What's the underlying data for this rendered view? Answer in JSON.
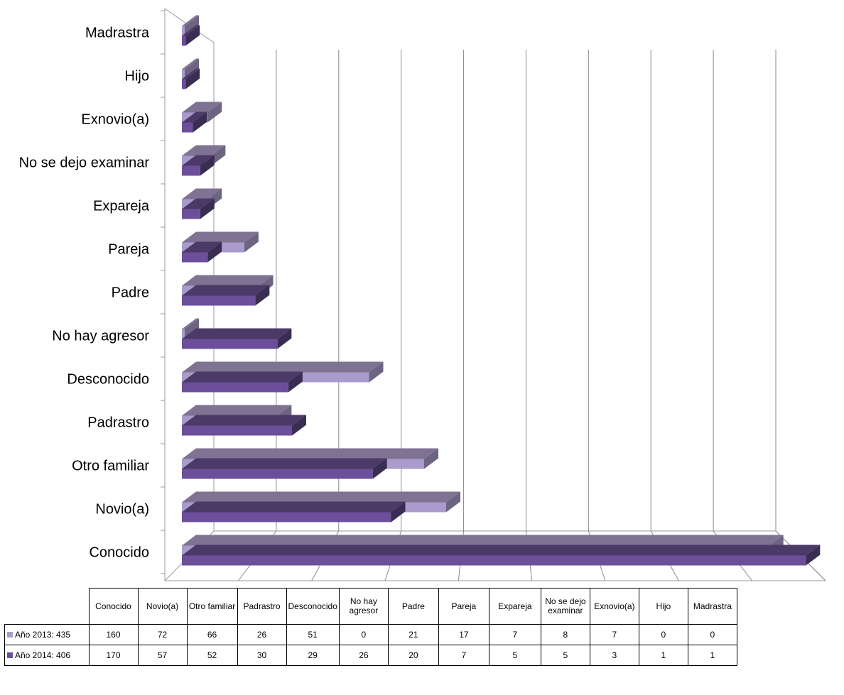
{
  "chart_data": {
    "type": "bar",
    "orientation": "horizontal",
    "three_d": true,
    "categories": [
      "Conocido",
      "Novio(a)",
      "Otro familiar",
      "Padrastro",
      "Desconocido",
      "No hay agresor",
      "Padre",
      "Pareja",
      "Expareja",
      "No se dejo examinar",
      "Exnovio(a)",
      "Hijo",
      "Madrastra"
    ],
    "table_headers": [
      "Conocido",
      "Novio(a)",
      "Otro familiar",
      "Padrastro",
      "Desconocido",
      "No hay agresor",
      "Padre",
      "Pareja",
      "Expareja",
      "No se dejo examinar",
      "Exnovio(a)",
      "Hijo",
      "Madrastra"
    ],
    "axis_tick_labels": [
      "0",
      "20",
      "40",
      "60",
      "80",
      "100",
      "120",
      "140",
      "160",
      "180"
    ],
    "xlim": [
      0,
      180
    ],
    "grid": true,
    "series": [
      {
        "name": "Año 2013: 435",
        "color": "#a99bcc",
        "values": [
          160,
          72,
          66,
          26,
          51,
          0,
          21,
          17,
          7,
          8,
          7,
          0,
          0
        ]
      },
      {
        "name": "Año 2014: 406",
        "color": "#6b4f9a",
        "values": [
          170,
          57,
          52,
          30,
          29,
          26,
          20,
          7,
          5,
          5,
          3,
          1,
          1
        ]
      }
    ],
    "legend_placement": "data-table"
  }
}
